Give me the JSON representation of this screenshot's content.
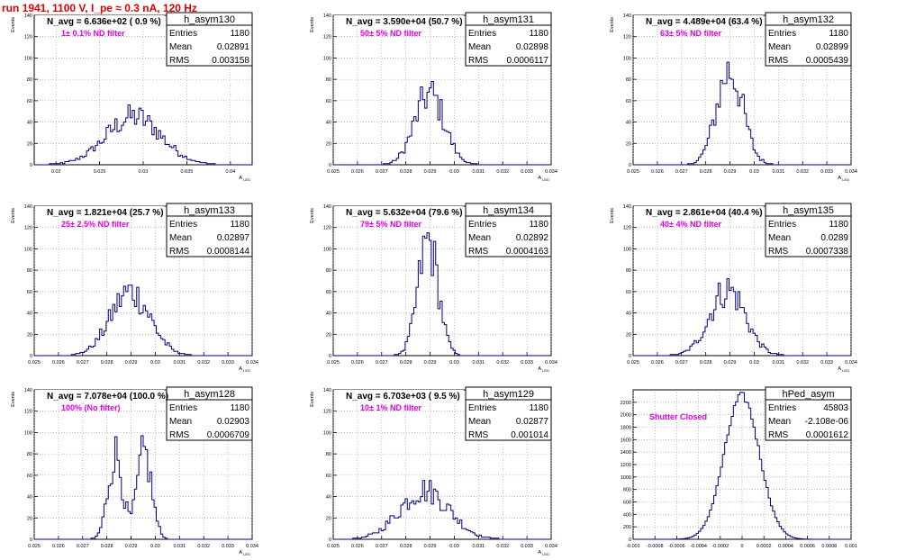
{
  "page_title": "run 1941,  1100 V, I_pe ≈ 0.3 nA, 120 Hz",
  "chart_data": [
    {
      "type": "histogram",
      "name": "h_asym130",
      "title": "N_avg = 6.636e+02 ( 0.9 %)",
      "annotation": "1± 0.1% ND filter",
      "ylabel": "Events",
      "xlabel": "A_LED",
      "stats": {
        "Entries": "1180",
        "Mean": "0.02891",
        "RMS": "0.003158"
      },
      "xlim": [
        0.0175,
        0.0425
      ],
      "ylim": [
        0,
        140
      ],
      "xticks": [
        0.02,
        0.025,
        0.03,
        0.035,
        0.04
      ],
      "xtick_labels": [
        "0.02",
        "0.025",
        "0.03",
        "0.035",
        "0.04"
      ],
      "yticks": [
        0,
        20,
        40,
        60,
        80,
        100,
        120,
        140
      ],
      "mean": 0.02891,
      "sigma": 0.003158,
      "peak": 45
    },
    {
      "type": "histogram",
      "name": "h_asym131",
      "title": "N_avg = 3.590e+04 (50.7 %)",
      "annotation": "50± 5% ND filter",
      "ylabel": "Events",
      "xlabel": "A_LED",
      "stats": {
        "Entries": "1180",
        "Mean": "0.02898",
        "RMS": "0.0006117"
      },
      "xlim": [
        0.025,
        0.034
      ],
      "ylim": [
        0,
        140
      ],
      "xticks": [
        0.025,
        0.026,
        0.027,
        0.028,
        0.029,
        0.03,
        0.031,
        0.032,
        0.033,
        0.034
      ],
      "xtick_labels": [
        "0.025",
        "0.026",
        "0.027",
        "0.028",
        "0.029",
        "0.03",
        "0.031",
        "0.032",
        "0.033",
        "0.034"
      ],
      "yticks": [
        0,
        20,
        40,
        60,
        80,
        100,
        120,
        140
      ],
      "mean": 0.02898,
      "sigma": 0.0006117,
      "peak": 66
    },
    {
      "type": "histogram",
      "name": "h_asym132",
      "title": "N_avg = 4.489e+04 (63.4 %)",
      "annotation": "63± 5% ND filter",
      "ylabel": "Events",
      "xlabel": "A_LED",
      "stats": {
        "Entries": "1180",
        "Mean": "0.02899",
        "RMS": "0.0005439"
      },
      "xlim": [
        0.025,
        0.034
      ],
      "ylim": [
        0,
        140
      ],
      "xticks": [
        0.025,
        0.026,
        0.027,
        0.028,
        0.029,
        0.03,
        0.031,
        0.032,
        0.033,
        0.034
      ],
      "xtick_labels": [
        "0.025",
        "0.026",
        "0.027",
        "0.028",
        "0.029",
        "0.03",
        "0.031",
        "0.032",
        "0.033",
        "0.034"
      ],
      "yticks": [
        0,
        20,
        40,
        60,
        80,
        100,
        120,
        140
      ],
      "mean": 0.02899,
      "sigma": 0.0005439,
      "peak": 88
    },
    {
      "type": "histogram",
      "name": "h_asym133",
      "title": "N_avg = 1.821e+04 (25.7 %)",
      "annotation": "25± 2.5% ND filter",
      "ylabel": "Events",
      "xlabel": "A_LED",
      "stats": {
        "Entries": "1180",
        "Mean": "0.02897",
        "RMS": "0.0008144"
      },
      "xlim": [
        0.025,
        0.034
      ],
      "ylim": [
        0,
        140
      ],
      "xticks": [
        0.025,
        0.026,
        0.027,
        0.028,
        0.029,
        0.03,
        0.031,
        0.032,
        0.033,
        0.034
      ],
      "xtick_labels": [
        "0.025",
        "0.026",
        "0.027",
        "0.028",
        "0.029",
        "0.03",
        "0.031",
        "0.032",
        "0.033",
        "0.034"
      ],
      "yticks": [
        0,
        20,
        40,
        60,
        80,
        100,
        120,
        140
      ],
      "mean": 0.02897,
      "sigma": 0.0008144,
      "peak": 60
    },
    {
      "type": "histogram",
      "name": "h_asym134",
      "title": "N_avg = 5.632e+04 (79.6 %)",
      "annotation": "79± 5% ND filter",
      "ylabel": "Events",
      "xlabel": "A_LED",
      "stats": {
        "Entries": "1180",
        "Mean": "0.02892",
        "RMS": "0.0004163"
      },
      "xlim": [
        0.025,
        0.034
      ],
      "ylim": [
        0,
        140
      ],
      "xticks": [
        0.025,
        0.026,
        0.027,
        0.028,
        0.029,
        0.03,
        0.031,
        0.032,
        0.033,
        0.034
      ],
      "xtick_labels": [
        "0.025",
        "0.026",
        "0.027",
        "0.028",
        "0.029",
        "0.03",
        "0.031",
        "0.032",
        "0.033",
        "0.034"
      ],
      "yticks": [
        0,
        20,
        40,
        60,
        80,
        100,
        120,
        140
      ],
      "mean": 0.02892,
      "sigma": 0.0004163,
      "peak": 107
    },
    {
      "type": "histogram",
      "name": "h_asym135",
      "title": "N_avg = 2.861e+04 (40.4 %)",
      "annotation": "40± 4% ND filter",
      "ylabel": "Events",
      "xlabel": "A_LED",
      "stats": {
        "Entries": "1180",
        "Mean": "0.0289",
        "RMS": "0.0007338"
      },
      "xlim": [
        0.025,
        0.034
      ],
      "ylim": [
        0,
        140
      ],
      "xticks": [
        0.025,
        0.026,
        0.027,
        0.028,
        0.029,
        0.03,
        0.031,
        0.032,
        0.033,
        0.034
      ],
      "xtick_labels": [
        "0.025",
        "0.026",
        "0.027",
        "0.028",
        "0.029",
        "0.03",
        "0.031",
        "0.032",
        "0.033",
        "0.034"
      ],
      "yticks": [
        0,
        20,
        40,
        60,
        80,
        100,
        120,
        140
      ],
      "mean": 0.0289,
      "sigma": 0.0007338,
      "peak": 62
    },
    {
      "type": "histogram",
      "name": "h_asym128",
      "title": "N_avg = 7.078e+04 (100.0 %)",
      "annotation": "100% (No filter)",
      "ylabel": "Events",
      "xlabel": "A_LED",
      "stats": {
        "Entries": "1180",
        "Mean": "0.02903",
        "RMS": "0.0006709"
      },
      "xlim": [
        0.025,
        0.034
      ],
      "ylim": [
        0,
        140
      ],
      "xticks": [
        0.025,
        0.026,
        0.027,
        0.028,
        0.029,
        0.03,
        0.031,
        0.032,
        0.033,
        0.034
      ],
      "xtick_labels": [
        "0.025",
        "0.026",
        "0.027",
        "0.028",
        "0.029",
        "0.03",
        "0.031",
        "0.032",
        "0.033",
        "0.034"
      ],
      "yticks": [
        0,
        20,
        40,
        60,
        80,
        100,
        120,
        140
      ],
      "mean": 0.02903,
      "sigma": 0.0006709,
      "peak": 80,
      "bimodal": [
        0.02835,
        0.02955
      ]
    },
    {
      "type": "histogram",
      "name": "h_asym129",
      "title": "N_avg = 6.703e+03 ( 9.5 %)",
      "annotation": "10± 1% ND filter",
      "ylabel": "Events",
      "xlabel": "A_LED",
      "stats": {
        "Entries": "1180",
        "Mean": "0.02877",
        "RMS": "0.001014"
      },
      "xlim": [
        0.025,
        0.034
      ],
      "ylim": [
        0,
        140
      ],
      "xticks": [
        0.025,
        0.026,
        0.027,
        0.028,
        0.029,
        0.03,
        0.031,
        0.032,
        0.033,
        0.034
      ],
      "xtick_labels": [
        "0.025",
        "0.026",
        "0.027",
        "0.028",
        "0.029",
        "0.03",
        "0.031",
        "0.032",
        "0.033",
        "0.034"
      ],
      "yticks": [
        0,
        20,
        40,
        60,
        80,
        100,
        120,
        140
      ],
      "mean": 0.02877,
      "sigma": 0.001014,
      "peak": 46
    },
    {
      "type": "histogram",
      "name": "hPed_asym",
      "title": "",
      "annotation": "Shutter Closed",
      "ylabel": "",
      "xlabel": "",
      "stats": {
        "Entries": "45803",
        "Mean": "-2.108e-06",
        "RMS": "0.0001612"
      },
      "xlim": [
        -0.001,
        0.001
      ],
      "ylim": [
        0,
        2400
      ],
      "xticks": [
        -0.001,
        -0.0008,
        -0.0006,
        -0.0004,
        -0.0002,
        0,
        0.0002,
        0.0004,
        0.0006,
        0.0008,
        0.001
      ],
      "xtick_labels": [
        "-0.001",
        "-0.0008",
        "-0.0006",
        "-0.0004",
        "-0.0002",
        "0",
        "0.0002",
        "0.0004",
        "0.0006",
        "0.0008",
        "0.001"
      ],
      "yticks": [
        0,
        200,
        400,
        600,
        800,
        1000,
        1200,
        1400,
        1600,
        1800,
        2000,
        2200
      ],
      "mean": -2.108e-06,
      "sigma": 0.0001612,
      "peak": 2300
    }
  ]
}
